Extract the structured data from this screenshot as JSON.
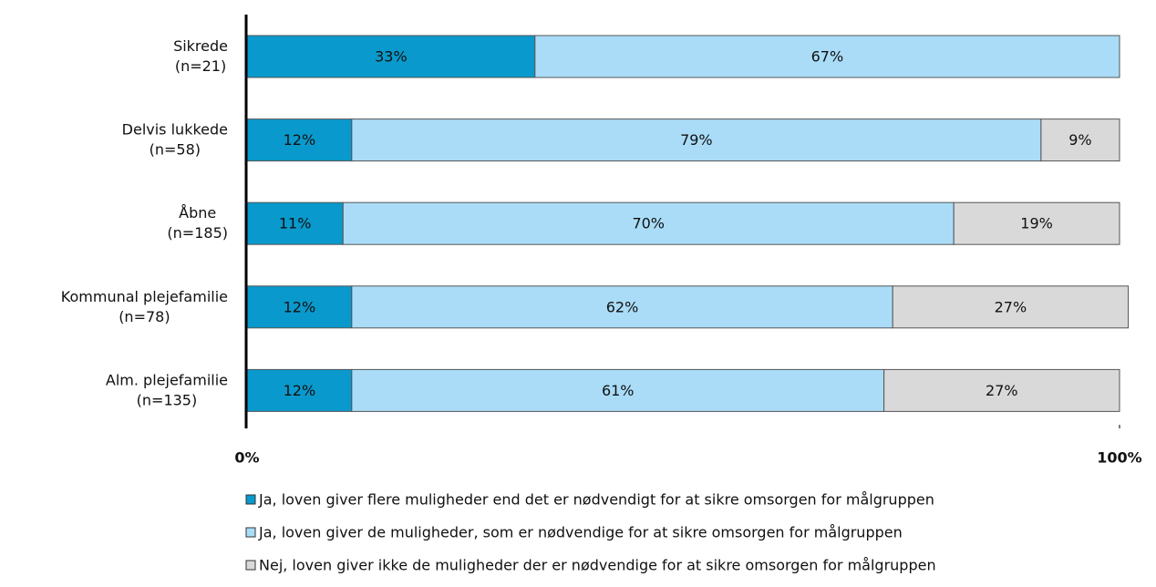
{
  "chart_data": {
    "type": "stacked-bar-horizontal",
    "categories": [
      [
        "Sikrede",
        "(n=21)"
      ],
      [
        "Delvis lukkede",
        "(n=58)"
      ],
      [
        "Åbne",
        "(n=185)"
      ],
      [
        "Kommunal plejefamilie",
        "(n=78)"
      ],
      [
        "Alm. plejefamilie",
        "(n=135)"
      ]
    ],
    "series": [
      {
        "name": "Ja, loven giver flere muligheder end det er nødvendigt for at sikre omsorgen for målgruppen",
        "color": "#0a99cc",
        "values": [
          33,
          12,
          11,
          12,
          12
        ],
        "value_labels": [
          "33%",
          "12%",
          "11%",
          "12%",
          "12%"
        ]
      },
      {
        "name": "Ja, loven giver de muligheder, som er nødvendige for at sikre omsorgen for målgruppen",
        "color": "#aadcf8",
        "values": [
          67,
          79,
          70,
          62,
          61
        ],
        "value_labels": [
          "67%",
          "79%",
          "70%",
          "62%",
          "61%"
        ]
      },
      {
        "name": "Nej, loven giver ikke de muligheder der er nødvendige for at sikre omsorgen for målgruppen",
        "color": "#d9d9d9",
        "values": [
          null,
          9,
          19,
          27,
          27
        ],
        "value_labels": [
          null,
          "9%",
          "19%",
          "27%",
          "27%"
        ]
      }
    ],
    "xlim": [
      0,
      100
    ],
    "xticks": [
      {
        "value": 0,
        "label": "0%"
      },
      {
        "value": 100,
        "label": "100%"
      }
    ]
  }
}
